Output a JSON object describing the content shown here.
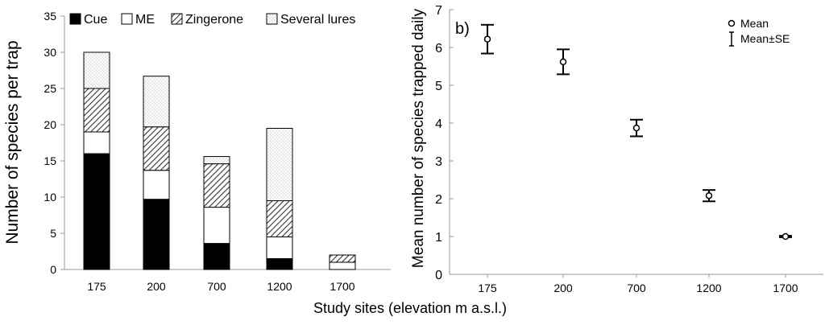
{
  "shared_xlabel": "Study sites (elevation m a.s.l.)",
  "chart_data": [
    {
      "type": "bar",
      "stacked": true,
      "categories": [
        "175",
        "200",
        "700",
        "1200",
        "1700"
      ],
      "ylabel": "Number of species per trap",
      "ylim": [
        0,
        35
      ],
      "yticks": [
        "0",
        "5",
        "10",
        "15",
        "20",
        "25",
        "30",
        "35"
      ],
      "legend_position": "top",
      "series": [
        {
          "name": "Cue",
          "values": [
            16,
            9.7,
            3.6,
            1.5,
            0
          ],
          "fill": "black"
        },
        {
          "name": "ME",
          "values": [
            3,
            4,
            5,
            3,
            1
          ],
          "fill": "white"
        },
        {
          "name": "Zingerone",
          "values": [
            6,
            6,
            6,
            5,
            1
          ],
          "fill": "hatch"
        },
        {
          "name": "Several lures",
          "values": [
            5,
            7,
            1,
            10,
            0
          ],
          "fill": "dots"
        }
      ]
    },
    {
      "type": "scatter",
      "panel_label": "b)",
      "categories": [
        "175",
        "200",
        "700",
        "1200",
        "1700"
      ],
      "ylabel": "Mean number of species trapped daily",
      "ylim": [
        0,
        7
      ],
      "yticks": [
        "0",
        "1",
        "2",
        "3",
        "4",
        "5",
        "6",
        "7"
      ],
      "legend_position": "top-right",
      "legend": {
        "mean": "Mean",
        "se": "Mean±SE"
      },
      "mean": [
        6.22,
        5.62,
        3.87,
        2.08,
        1.0
      ],
      "se": [
        0.38,
        0.33,
        0.22,
        0.15,
        0.02
      ]
    }
  ]
}
